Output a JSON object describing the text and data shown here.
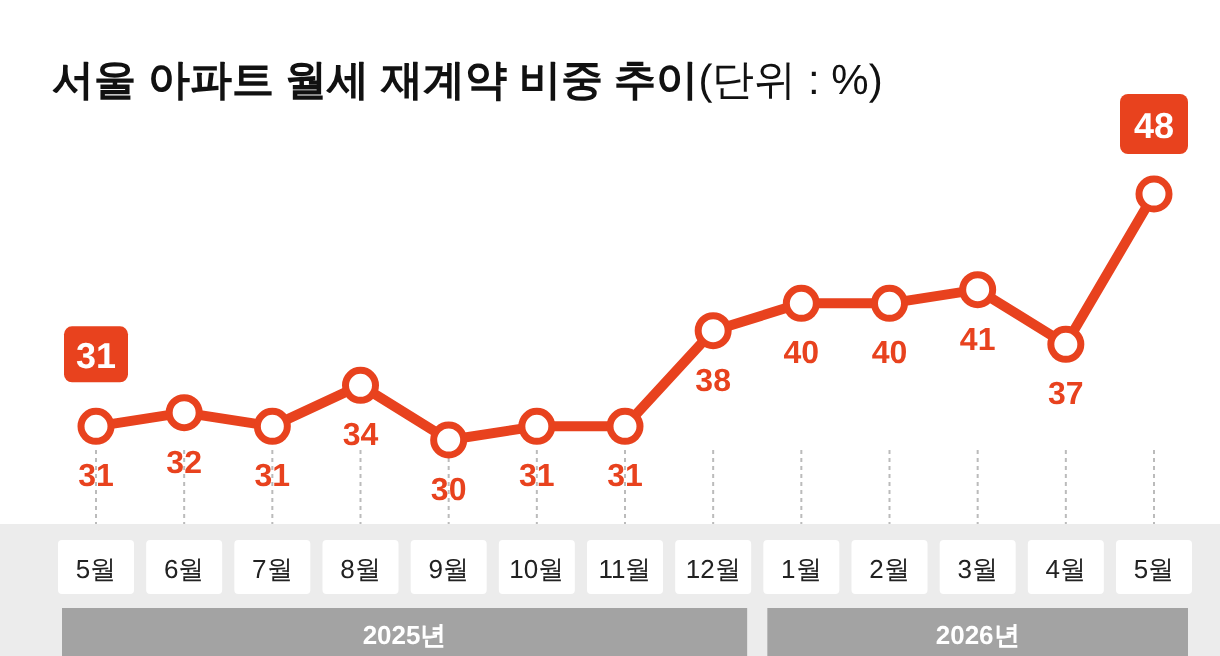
{
  "chart_data": {
    "type": "line",
    "title": "서울 아파트 월세 재계약 비중 추이",
    "subtitle": "(단위 : %)",
    "categories": [
      "5월",
      "6월",
      "7월",
      "8월",
      "9월",
      "10월",
      "11월",
      "12월",
      "1월",
      "2월",
      "3월",
      "4월",
      "5월"
    ],
    "series": [
      {
        "color": "#e8421e",
        "values": [
          31,
          32,
          31,
          34,
          30,
          31,
          31,
          38,
          40,
          40,
          41,
          37,
          48
        ]
      }
    ],
    "data_labels": true,
    "marker": "circle",
    "line_style": "solid",
    "annotations": [
      {
        "text": "31",
        "x": "5월",
        "y": 31
      },
      "2025년",
      "2026년"
    ]
  }
}
